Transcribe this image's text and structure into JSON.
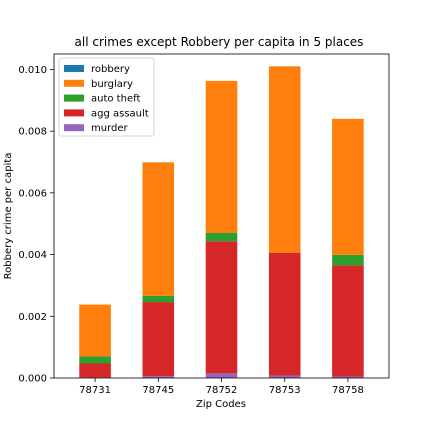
{
  "chart_data": {
    "type": "bar",
    "stacked": true,
    "title": "all crimes except Robbery per capita in 5 places",
    "xlabel": "Zip Codes",
    "ylabel": "Robbery crime per capita",
    "categories": [
      "78731",
      "78745",
      "78752",
      "78753",
      "78758"
    ],
    "ylim": [
      0,
      0.0105
    ],
    "yticks": [
      "0.000",
      "0.002",
      "0.004",
      "0.006",
      "0.008",
      "0.010"
    ],
    "ytick_values": [
      0,
      0.002,
      0.004,
      0.006,
      0.008,
      0.01
    ],
    "legend_position": "upper-left",
    "grid": false,
    "stack_order": [
      "murder",
      "agg assault",
      "auto theft",
      "burglary",
      "robbery"
    ],
    "series": [
      {
        "name": "robbery",
        "color": "#1f77b4",
        "values": [
          0,
          0,
          0,
          0,
          0
        ]
      },
      {
        "name": "burglary",
        "color": "#ff7f0e",
        "values": [
          0.00168,
          0.00433,
          0.00493,
          0.00604,
          0.00441
        ]
      },
      {
        "name": "auto theft",
        "color": "#2ca02c",
        "values": [
          0.00023,
          0.0002,
          0.00027,
          0.0,
          0.00034
        ]
      },
      {
        "name": "agg assault",
        "color": "#d62728",
        "values": [
          0.00045,
          0.0024,
          0.00428,
          0.00398,
          0.0036
        ]
      },
      {
        "name": "murder",
        "color": "#9467bd",
        "values": [
          2e-05,
          6e-05,
          0.00015,
          8e-05,
          5e-05
        ]
      }
    ]
  }
}
